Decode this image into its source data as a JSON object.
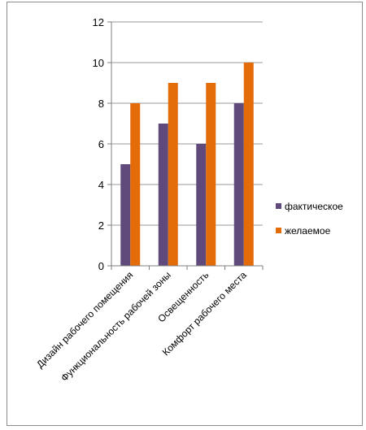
{
  "chart_data": {
    "type": "bar",
    "categories": [
      "Дизайн рабочего помещения",
      "Функциональность рабочей зоны",
      "Освещенность",
      "Комфорт рабочего места"
    ],
    "series": [
      {
        "name": "фактическое",
        "color": "#604a7b",
        "values": [
          5,
          7,
          6,
          8
        ]
      },
      {
        "name": "желаемое",
        "color": "#e36c09",
        "values": [
          8,
          9,
          9,
          10
        ]
      }
    ],
    "ylim": [
      0,
      12
    ],
    "yticks": [
      0,
      2,
      4,
      6,
      8,
      10,
      12
    ],
    "grid": true,
    "legend": "right",
    "title": "",
    "xlabel": "",
    "ylabel": ""
  }
}
